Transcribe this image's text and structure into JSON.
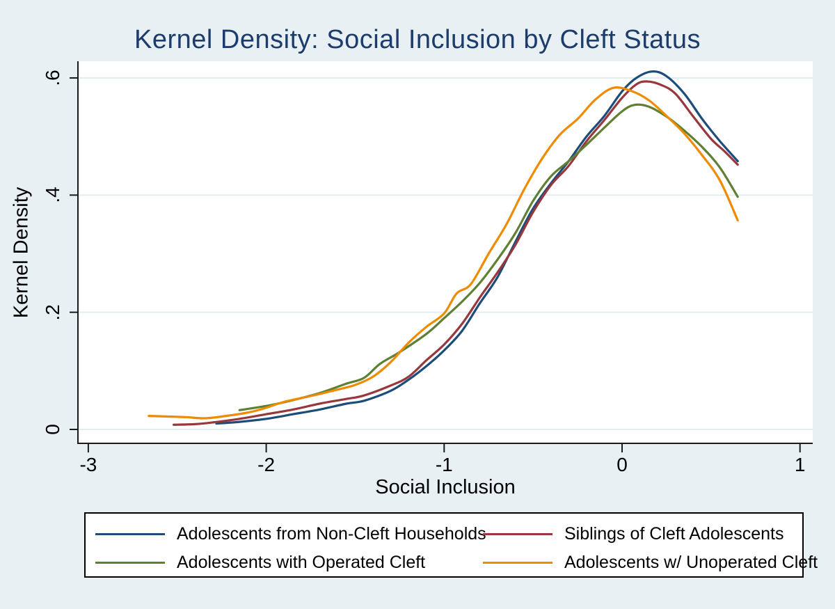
{
  "figure": {
    "background_color": "#e9f0f3",
    "plot_background": "#ffffff",
    "gridline_color": "#e3edf0",
    "axis_color": "#1a1a1a",
    "title_color": "#1b3c6d"
  },
  "chart_data": {
    "type": "line",
    "title": "Kernel Density: Social Inclusion by Cleft Status",
    "xlabel": "Social Inclusion",
    "ylabel": "Kernel Density",
    "xlim": [
      -3.06,
      1.07
    ],
    "ylim": [
      -0.026,
      0.629
    ],
    "xticks": {
      "values": [
        -3,
        -2,
        -1,
        0,
        1
      ],
      "labels": [
        "-3",
        "-2",
        "-1",
        "0",
        "1"
      ]
    },
    "yticks": {
      "values": [
        0,
        0.2,
        0.4,
        0.6
      ],
      "labels": [
        "0",
        ".2",
        ".4",
        ".6"
      ]
    },
    "grid": "horizontal-only",
    "legend_position": "bottom-box-2x2",
    "series": [
      {
        "name": "Adolescents from Non-Cleft Households",
        "color": "#1c4d7a",
        "points": [
          [
            -2.28,
            0.01
          ],
          [
            -2.15,
            0.013
          ],
          [
            -2.0,
            0.018
          ],
          [
            -1.85,
            0.026
          ],
          [
            -1.7,
            0.034
          ],
          [
            -1.55,
            0.044
          ],
          [
            -1.45,
            0.049
          ],
          [
            -1.3,
            0.066
          ],
          [
            -1.2,
            0.085
          ],
          [
            -1.1,
            0.108
          ],
          [
            -1.0,
            0.135
          ],
          [
            -0.9,
            0.168
          ],
          [
            -0.8,
            0.215
          ],
          [
            -0.7,
            0.26
          ],
          [
            -0.6,
            0.32
          ],
          [
            -0.5,
            0.377
          ],
          [
            -0.4,
            0.42
          ],
          [
            -0.3,
            0.458
          ],
          [
            -0.2,
            0.5
          ],
          [
            -0.1,
            0.535
          ],
          [
            0.0,
            0.577
          ],
          [
            0.08,
            0.6
          ],
          [
            0.17,
            0.611
          ],
          [
            0.25,
            0.603
          ],
          [
            0.35,
            0.573
          ],
          [
            0.45,
            0.53
          ],
          [
            0.55,
            0.492
          ],
          [
            0.65,
            0.458
          ]
        ]
      },
      {
        "name": "Siblings of Cleft Adolescents",
        "color": "#98383e",
        "points": [
          [
            -2.52,
            0.008
          ],
          [
            -2.4,
            0.009
          ],
          [
            -2.3,
            0.012
          ],
          [
            -2.15,
            0.018
          ],
          [
            -2.0,
            0.026
          ],
          [
            -1.85,
            0.034
          ],
          [
            -1.7,
            0.044
          ],
          [
            -1.55,
            0.052
          ],
          [
            -1.45,
            0.058
          ],
          [
            -1.3,
            0.075
          ],
          [
            -1.2,
            0.09
          ],
          [
            -1.1,
            0.118
          ],
          [
            -1.0,
            0.145
          ],
          [
            -0.9,
            0.18
          ],
          [
            -0.8,
            0.225
          ],
          [
            -0.7,
            0.268
          ],
          [
            -0.6,
            0.315
          ],
          [
            -0.5,
            0.371
          ],
          [
            -0.4,
            0.417
          ],
          [
            -0.3,
            0.45
          ],
          [
            -0.2,
            0.492
          ],
          [
            -0.1,
            0.528
          ],
          [
            0.0,
            0.566
          ],
          [
            0.08,
            0.589
          ],
          [
            0.14,
            0.594
          ],
          [
            0.22,
            0.588
          ],
          [
            0.3,
            0.573
          ],
          [
            0.4,
            0.534
          ],
          [
            0.5,
            0.496
          ],
          [
            0.575,
            0.475
          ],
          [
            0.65,
            0.452
          ]
        ]
      },
      {
        "name": "Adolescents with Operated Cleft",
        "color": "#5f8033",
        "points": [
          [
            -2.15,
            0.033
          ],
          [
            -2.0,
            0.04
          ],
          [
            -1.85,
            0.05
          ],
          [
            -1.7,
            0.062
          ],
          [
            -1.55,
            0.078
          ],
          [
            -1.45,
            0.088
          ],
          [
            -1.36,
            0.112
          ],
          [
            -1.25,
            0.132
          ],
          [
            -1.1,
            0.163
          ],
          [
            -1.0,
            0.19
          ],
          [
            -0.9,
            0.218
          ],
          [
            -0.8,
            0.25
          ],
          [
            -0.7,
            0.29
          ],
          [
            -0.6,
            0.335
          ],
          [
            -0.5,
            0.39
          ],
          [
            -0.4,
            0.432
          ],
          [
            -0.3,
            0.458
          ],
          [
            -0.2,
            0.486
          ],
          [
            -0.1,
            0.515
          ],
          [
            0.0,
            0.543
          ],
          [
            0.07,
            0.554
          ],
          [
            0.15,
            0.551
          ],
          [
            0.25,
            0.534
          ],
          [
            0.35,
            0.51
          ],
          [
            0.45,
            0.482
          ],
          [
            0.55,
            0.447
          ],
          [
            0.65,
            0.397
          ]
        ]
      },
      {
        "name": "Adolescents w/ Unoperated Cleft",
        "color": "#ee8b00",
        "points": [
          [
            -2.66,
            0.023
          ],
          [
            -2.55,
            0.022
          ],
          [
            -2.45,
            0.021
          ],
          [
            -2.35,
            0.019
          ],
          [
            -2.25,
            0.022
          ],
          [
            -2.1,
            0.029
          ],
          [
            -2.0,
            0.037
          ],
          [
            -1.9,
            0.047
          ],
          [
            -1.75,
            0.057
          ],
          [
            -1.6,
            0.068
          ],
          [
            -1.5,
            0.076
          ],
          [
            -1.4,
            0.09
          ],
          [
            -1.3,
            0.115
          ],
          [
            -1.2,
            0.148
          ],
          [
            -1.1,
            0.175
          ],
          [
            -1.0,
            0.198
          ],
          [
            -0.93,
            0.232
          ],
          [
            -0.85,
            0.248
          ],
          [
            -0.75,
            0.3
          ],
          [
            -0.65,
            0.35
          ],
          [
            -0.55,
            0.41
          ],
          [
            -0.45,
            0.462
          ],
          [
            -0.35,
            0.503
          ],
          [
            -0.25,
            0.53
          ],
          [
            -0.15,
            0.563
          ],
          [
            -0.05,
            0.583
          ],
          [
            0.05,
            0.578
          ],
          [
            0.15,
            0.562
          ],
          [
            0.25,
            0.535
          ],
          [
            0.35,
            0.505
          ],
          [
            0.45,
            0.468
          ],
          [
            0.55,
            0.425
          ],
          [
            0.65,
            0.357
          ]
        ]
      }
    ]
  },
  "legend": {
    "rows": 2,
    "columns": 2,
    "order_row_major": [
      "Adolescents from Non-Cleft Households",
      "Siblings of Cleft Adolescents",
      "Adolescents with Operated Cleft",
      "Adolescents w/ Unoperated Cleft"
    ]
  }
}
